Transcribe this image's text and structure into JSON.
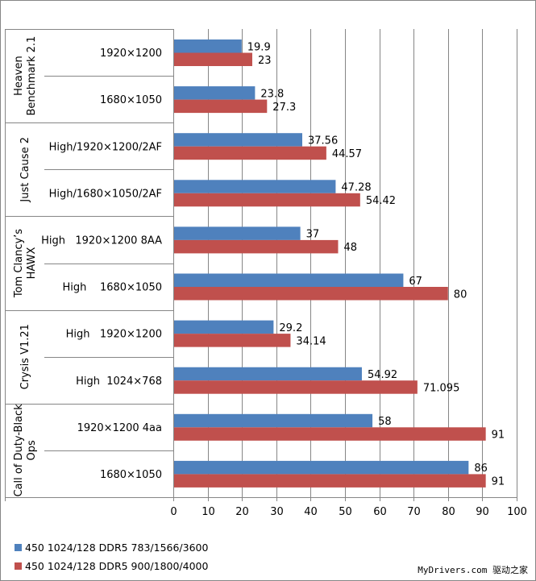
{
  "chart_data": {
    "type": "bar",
    "orientation": "horizontal",
    "title": "",
    "xlabel": "",
    "ylabel": "",
    "xlim": [
      0,
      100
    ],
    "x_ticks": [
      "0",
      "10",
      "20",
      "30",
      "40",
      "50",
      "60",
      "70",
      "80",
      "90",
      "100"
    ],
    "grid": true,
    "legend_position": "bottom-left",
    "groups": [
      {
        "name": "Heaven Benchmark 2.1",
        "categories": [
          "1920×1200",
          "1680×1050"
        ]
      },
      {
        "name": "Just Cause 2",
        "categories": [
          "High/1920×1200/2AF",
          "High/1680×1050/2AF"
        ]
      },
      {
        "name": "Tom Clancy’s HAWX",
        "categories": [
          "High   1920×1200 8AA",
          "High    1680×1050"
        ]
      },
      {
        "name": "Crysis V1.21",
        "categories": [
          "High   1920×1200",
          "High  1024×768"
        ]
      },
      {
        "name": "Call of Duty-Black Ops",
        "categories": [
          "1920×1200 4aa",
          "1680×1050"
        ]
      }
    ],
    "group_label_lines": [
      [
        "Heaven",
        "Benchmark 2.1"
      ],
      [
        "Just Cause 2"
      ],
      [
        "Tom Clancy’s",
        "HAWX"
      ],
      [
        "Crysis V1.21"
      ],
      [
        "Call of Duty-Black",
        "Ops"
      ]
    ],
    "series": [
      {
        "name": "450 1024/128 DDR5 783/1566/3600",
        "color": "#4f81bd",
        "values": [
          19.9,
          23.8,
          37.56,
          47.28,
          37,
          67,
          29.2,
          54.92,
          58,
          86
        ],
        "labels": [
          "19.9",
          "23.8",
          "37.56",
          "47.28",
          "37",
          "67",
          "29.2",
          "54.92",
          "58",
          "86"
        ]
      },
      {
        "name": "450 1024/128 DDR5 900/1800/4000",
        "color": "#c0504d",
        "values": [
          23,
          27.3,
          44.57,
          54.42,
          48,
          80,
          34.14,
          71.095,
          91,
          91
        ],
        "labels": [
          "23",
          "27.3",
          "44.57",
          "54.42",
          "48",
          "80",
          "34.14",
          "71.095",
          "91",
          "91"
        ]
      }
    ]
  },
  "watermark": "MyDrivers.com 驱动之家"
}
